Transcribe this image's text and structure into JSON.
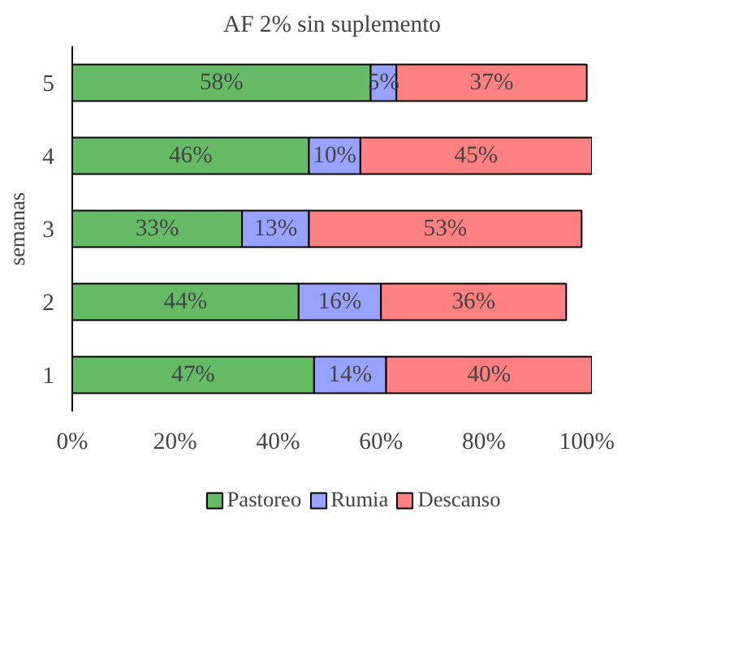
{
  "chart_data": {
    "type": "bar",
    "orientation": "horizontal",
    "stacked": true,
    "title": "AF 2% sin suplemento",
    "ylabel": "semanas",
    "categories": [
      "5",
      "4",
      "3",
      "2",
      "1"
    ],
    "series": [
      {
        "name": "Pastoreo",
        "color": "#66bb66",
        "values": [
          58,
          46,
          33,
          44,
          47
        ]
      },
      {
        "name": "Rumia",
        "color": "#99a3ff",
        "values": [
          5,
          10,
          13,
          16,
          14
        ]
      },
      {
        "name": "Descanso",
        "color": "#ff8080",
        "values": [
          37,
          45,
          53,
          36,
          40
        ]
      }
    ],
    "xlim": [
      0,
      101
    ],
    "xticks": [
      {
        "value": 0,
        "label": "0%"
      },
      {
        "value": 20,
        "label": "20%"
      },
      {
        "value": 40,
        "label": "40%"
      },
      {
        "value": 60,
        "label": "60%"
      },
      {
        "value": 80,
        "label": "80%"
      },
      {
        "value": 100,
        "label": "100%"
      }
    ],
    "value_labels": [
      [
        "58%",
        "46%",
        "33%",
        "44%",
        "47%"
      ],
      [
        "5%",
        "10%",
        "13%",
        "16%",
        "14%"
      ],
      [
        "37%",
        "45%",
        "53%",
        "36%",
        "40%"
      ]
    ],
    "grid": false,
    "legend": "bottom"
  }
}
